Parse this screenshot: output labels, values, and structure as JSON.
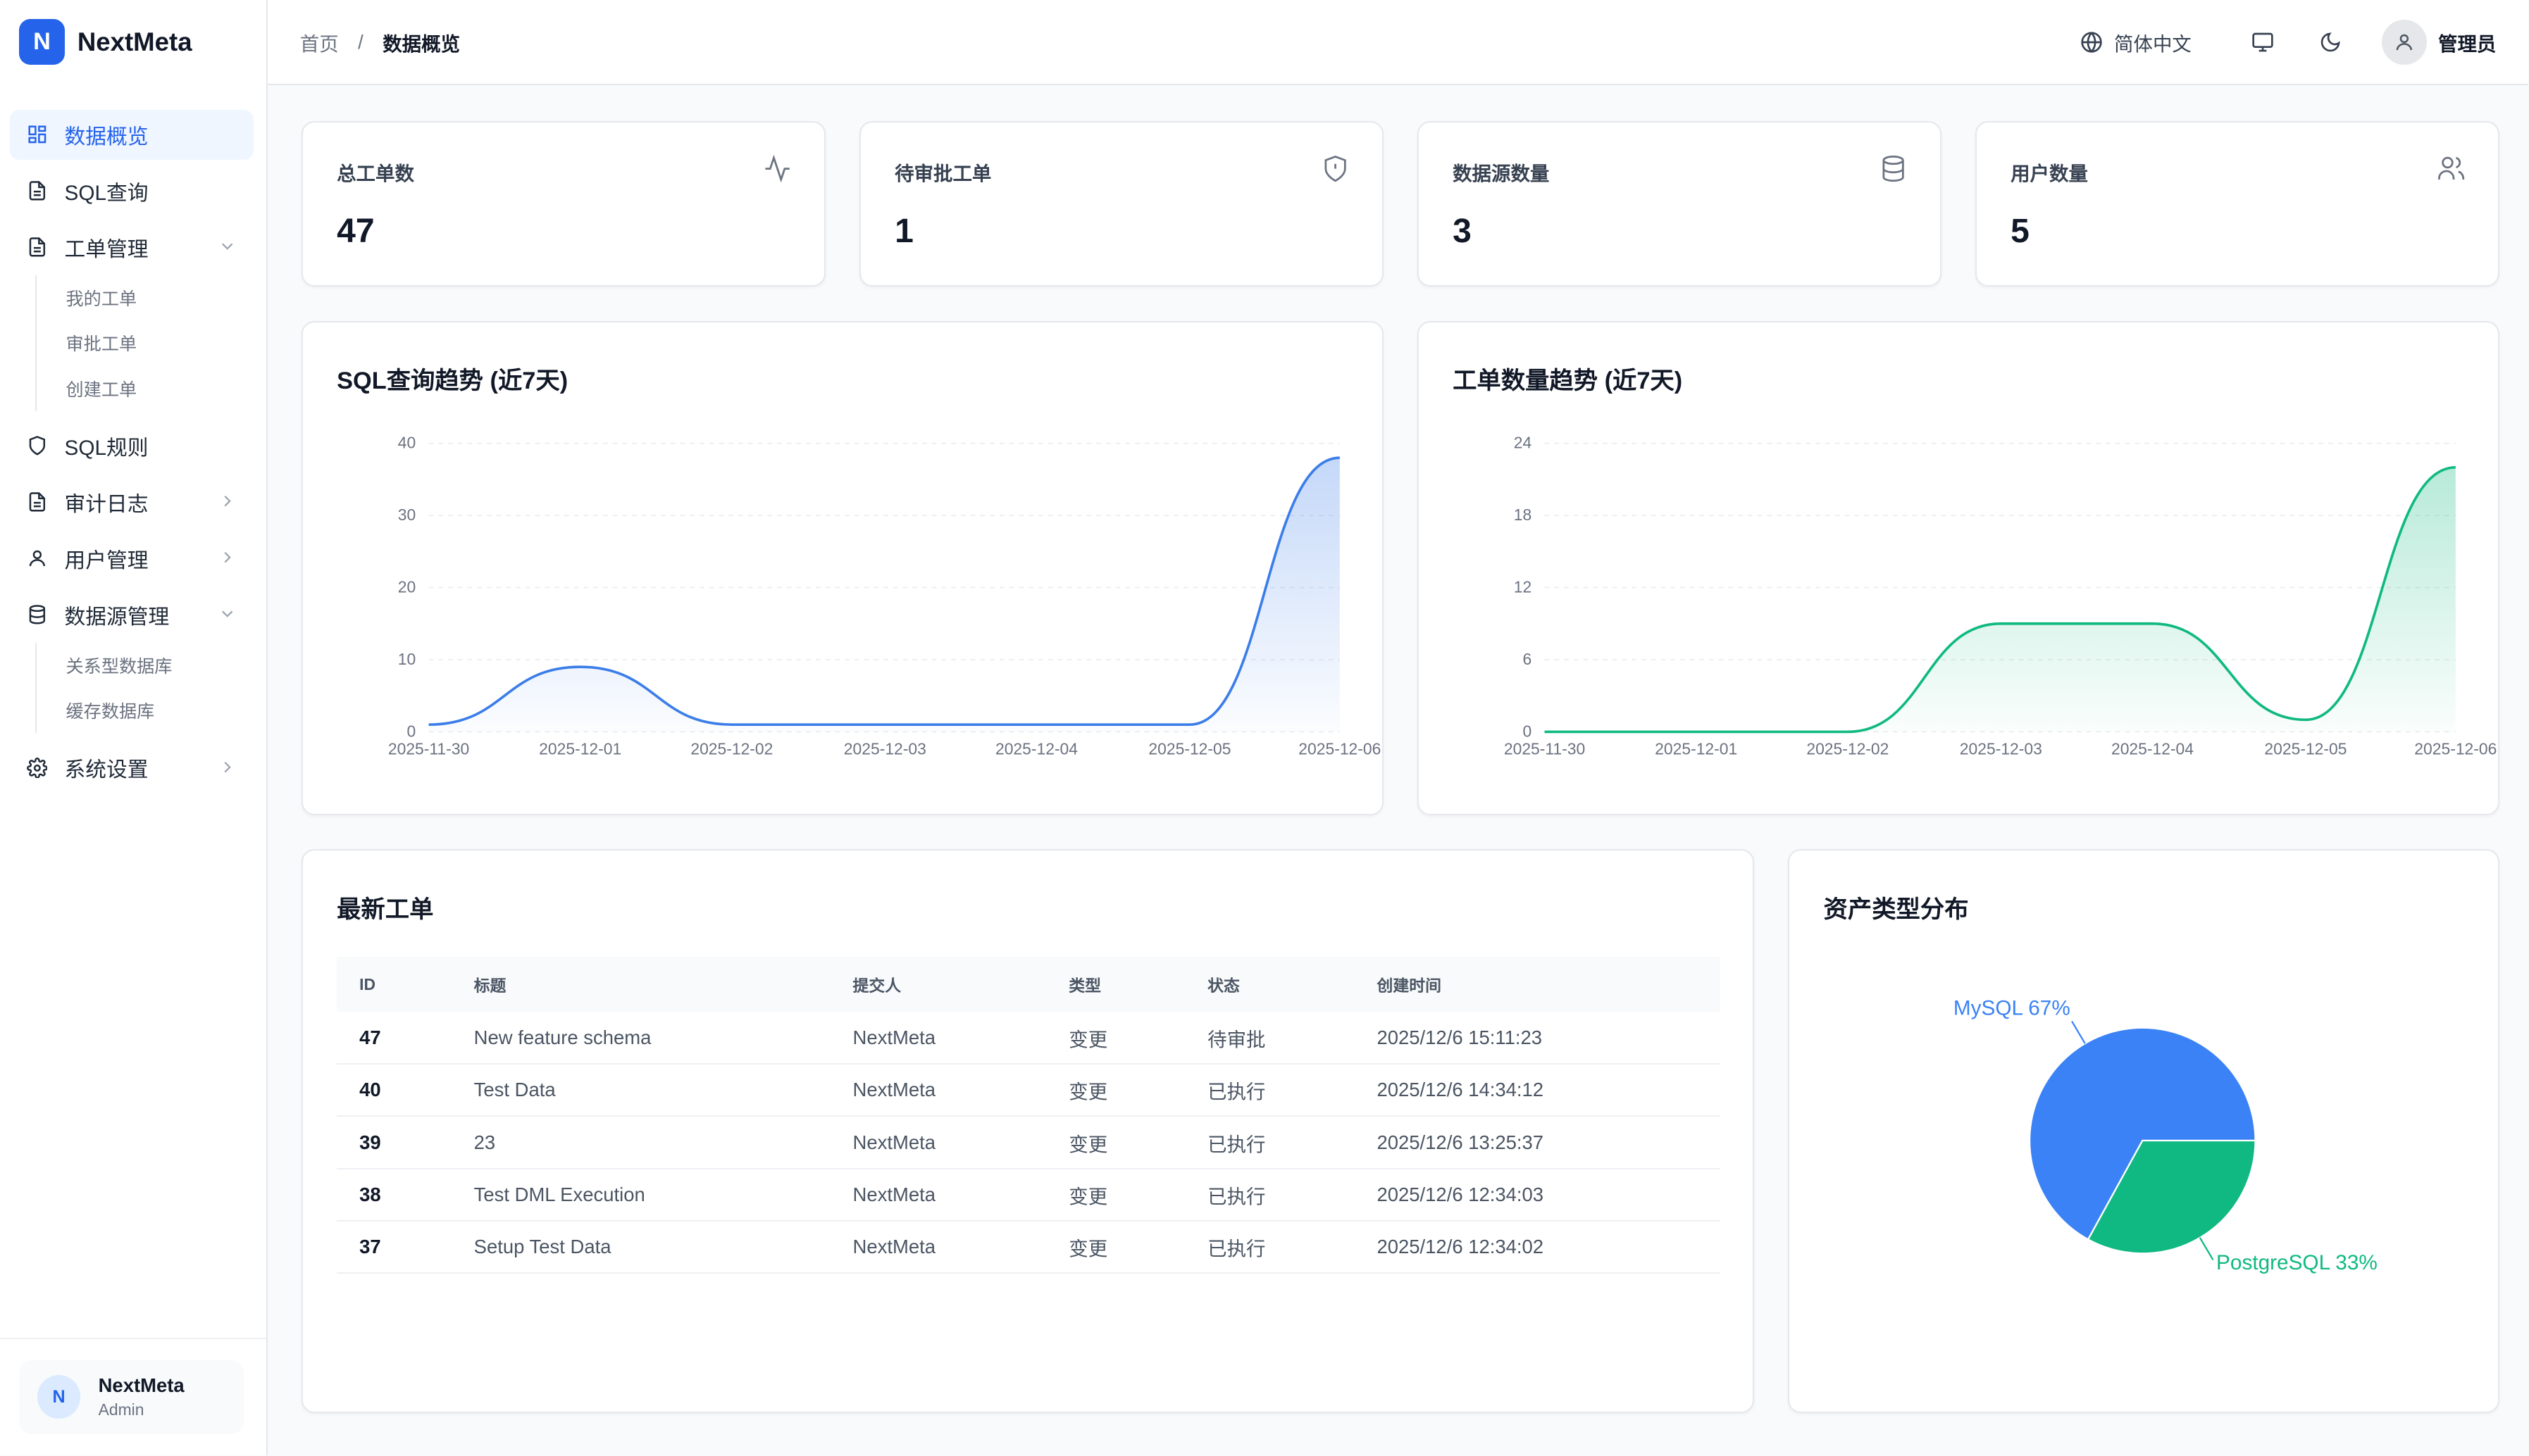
{
  "brand": {
    "logo_letter": "N",
    "name": "NextMeta"
  },
  "sidebar": {
    "items": [
      {
        "label": "数据概览",
        "icon": "dashboard-grid-icon",
        "active": true
      },
      {
        "label": "SQL查询",
        "icon": "file-text-icon"
      },
      {
        "label": "工单管理",
        "icon": "file-text-icon",
        "expanded": true,
        "children": [
          "我的工单",
          "审批工单",
          "创建工单"
        ]
      },
      {
        "label": "SQL规则",
        "icon": "shield-icon"
      },
      {
        "label": "审计日志",
        "icon": "file-text-icon",
        "caret": "chevron-right-icon"
      },
      {
        "label": "用户管理",
        "icon": "user-icon",
        "caret": "chevron-right-icon"
      },
      {
        "label": "数据源管理",
        "icon": "database-icon",
        "expanded": true,
        "children": [
          "关系型数据库",
          "缓存数据库"
        ]
      },
      {
        "label": "系统设置",
        "icon": "gear-icon",
        "caret": "chevron-right-icon"
      }
    ]
  },
  "footer_user": {
    "initial": "N",
    "name": "NextMeta",
    "role": "Admin"
  },
  "topbar": {
    "breadcrumb": {
      "home": "首页",
      "separator": "/",
      "current": "数据概览"
    },
    "language": "简体中文",
    "admin_name": "管理员"
  },
  "stats": [
    {
      "label": "总工单数",
      "value": "47",
      "icon": "activity-icon"
    },
    {
      "label": "待审批工单",
      "value": "1",
      "icon": "shield-alert-icon"
    },
    {
      "label": "数据源数量",
      "value": "3",
      "icon": "database-icon"
    },
    {
      "label": "用户数量",
      "value": "5",
      "icon": "users-icon"
    }
  ],
  "chart_data": [
    {
      "type": "area",
      "title": "SQL查询趋势 (近7天)",
      "x": [
        "2025-11-30",
        "2025-12-01",
        "2025-12-02",
        "2025-12-03",
        "2025-12-04",
        "2025-12-05",
        "2025-12-06"
      ],
      "values": [
        1,
        9,
        1,
        1,
        1,
        1,
        38
      ],
      "yticks": [
        0,
        10,
        20,
        30,
        40
      ],
      "ylim": [
        0,
        40
      ],
      "color": "#3b7de9",
      "grid": true
    },
    {
      "type": "area",
      "title": "工单数量趋势 (近7天)",
      "x": [
        "2025-11-30",
        "2025-12-01",
        "2025-12-02",
        "2025-12-03",
        "2025-12-04",
        "2025-12-05",
        "2025-12-06"
      ],
      "values": [
        0,
        0,
        0,
        9,
        9,
        1,
        22
      ],
      "yticks": [
        0,
        6,
        12,
        18,
        24
      ],
      "ylim": [
        0,
        24
      ],
      "color": "#10b981",
      "grid": true
    },
    {
      "type": "pie",
      "title": "资产类型分布",
      "slices": [
        {
          "label": "MySQL 67%",
          "value": 67,
          "color": "#3b82f6"
        },
        {
          "label": "PostgreSQL 33%",
          "value": 33,
          "color": "#10b981"
        }
      ]
    }
  ],
  "orders": {
    "title": "最新工单",
    "columns": [
      "ID",
      "标题",
      "提交人",
      "类型",
      "状态",
      "创建时间"
    ],
    "rows": [
      [
        "47",
        "New feature schema",
        "NextMeta",
        "变更",
        "待审批",
        "2025/12/6 15:11:23"
      ],
      [
        "40",
        "Test Data",
        "NextMeta",
        "变更",
        "已执行",
        "2025/12/6 14:34:12"
      ],
      [
        "39",
        "23",
        "NextMeta",
        "变更",
        "已执行",
        "2025/12/6 13:25:37"
      ],
      [
        "38",
        "Test DML Execution",
        "NextMeta",
        "变更",
        "已执行",
        "2025/12/6 12:34:03"
      ],
      [
        "37",
        "Setup Test Data",
        "NextMeta",
        "变更",
        "已执行",
        "2025/12/6 12:34:02"
      ]
    ]
  }
}
